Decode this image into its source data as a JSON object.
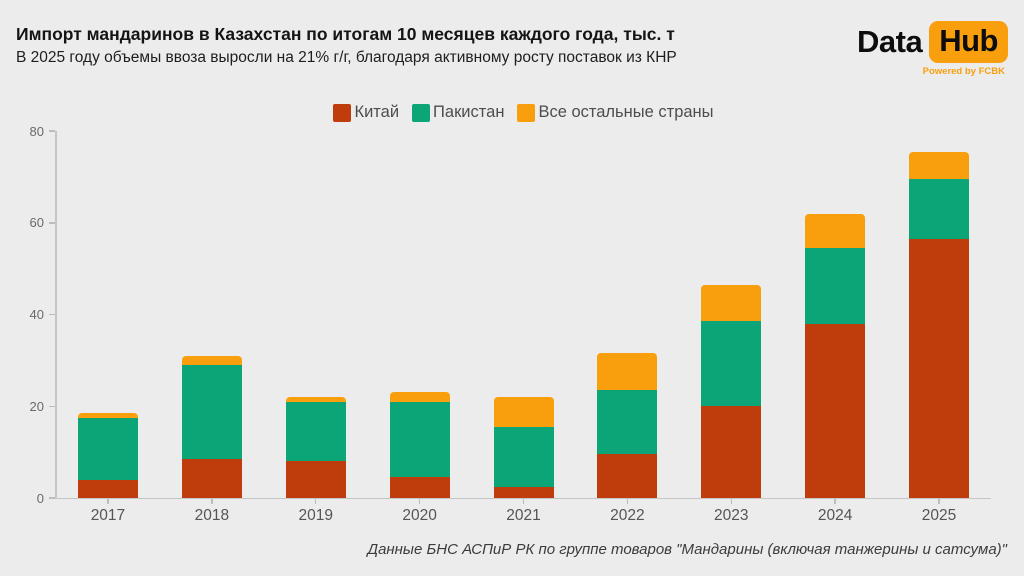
{
  "header": {
    "title": "Импорт мандаринов в Казахстан по итогам 10 месяцев каждого года, тыс. т",
    "subtitle": "В 2025 году объемы ввоза выросли на 21% г/г, благодаря активному росту поставок из КНР"
  },
  "logo": {
    "part1": "Data",
    "part2": "Hub",
    "tagline": "Powered by FCBK",
    "accent_color": "#f99f0e"
  },
  "footer": {
    "source": "Данные БНС АСПиР РК по группе товаров \"Мандарины (включая танжерины и сатсума)\""
  },
  "chart_data": {
    "type": "bar",
    "stacked": true,
    "title": "Импорт мандаринов в Казахстан по итогам 10 месяцев каждого года, тыс. т",
    "xlabel": "",
    "ylabel": "тыс. т",
    "categories": [
      "2017",
      "2018",
      "2019",
      "2020",
      "2021",
      "2022",
      "2023",
      "2024",
      "2025"
    ],
    "series": [
      {
        "name": "Китай",
        "color": "#bf3c0c",
        "values": [
          4,
          8.5,
          8,
          4.5,
          2.5,
          9.5,
          20,
          38,
          56.5
        ]
      },
      {
        "name": "Пакистан",
        "color": "#0ba577",
        "values": [
          13.5,
          20.5,
          13,
          16.5,
          13,
          14,
          18.5,
          16.5,
          13
        ]
      },
      {
        "name": "Все остальные страны",
        "color": "#f99f0e",
        "values": [
          1,
          2,
          1,
          2,
          6.5,
          8,
          8,
          7.5,
          6
        ]
      }
    ],
    "totals": [
      18.5,
      31,
      22,
      23,
      22,
      31.5,
      46.5,
      62,
      75.5
    ],
    "ylim": [
      0,
      80
    ],
    "yticks": [
      0,
      20,
      40,
      60,
      80
    ],
    "legend_position": "top-center",
    "grid": false,
    "background_color": "#ececec"
  }
}
